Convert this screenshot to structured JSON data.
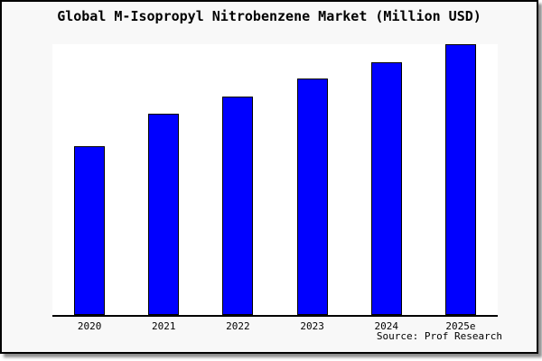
{
  "chart_data": {
    "type": "bar",
    "title": "Global M-Isopropyl Nitrobenzene Market (Million USD)",
    "categories": [
      "2020",
      "2021",
      "2022",
      "2023",
      "2024",
      "2025e"
    ],
    "values": [
      62.5,
      74.5,
      80.8,
      87.2,
      93.3,
      100
    ],
    "value_note": "no y-axis scale shown in chart; values normalized so 2025e = 100",
    "xlabel": "",
    "ylabel": "",
    "ylim": [
      0,
      100
    ],
    "grid": false,
    "legend": false,
    "bar_color": "#0000ff",
    "bar_border_color": "#000000",
    "source_note": "Source: Prof Research"
  },
  "colors": {
    "page_background": "#f8f8f8",
    "plot_background": "#ffffff",
    "border": "#000000",
    "text": "#000000"
  }
}
